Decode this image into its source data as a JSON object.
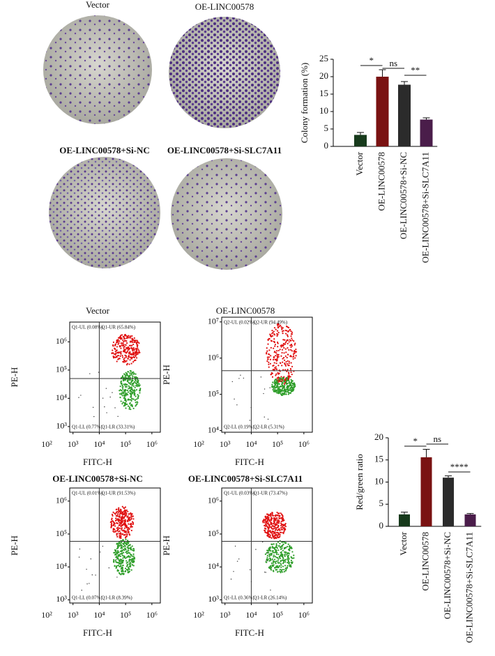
{
  "colony_images": {
    "labels": [
      "Vector",
      "OE-LINC00578",
      "OE-LINC00578+Si-NC",
      "OE-LINC00578+Si-SLC7A11"
    ]
  },
  "flow_plots": [
    {
      "title": "Vector",
      "xlabel": "FITC-H",
      "ylabel": "PE-H",
      "log": true,
      "xlim": [
        750,
        2100000
      ],
      "ylim": [
        630,
        5000000
      ],
      "gate_x": 10000,
      "gate_y": 50000,
      "xticks": [
        {
          "value": 100,
          "label": "10²"
        },
        {
          "value": 1000,
          "label": "10³"
        },
        {
          "value": 10000,
          "label": "10⁴"
        },
        {
          "value": 100000,
          "label": "10⁵"
        },
        {
          "value": 1000000,
          "label": "10⁶"
        }
      ],
      "yticks": [
        {
          "value": 1000,
          "label": "10³"
        },
        {
          "value": 10000,
          "label": "10⁴"
        },
        {
          "value": 100000,
          "label": "10⁵"
        },
        {
          "value": 1000000,
          "label": "10⁶"
        }
      ],
      "quadrants": {
        "ul": "Q1-UL (0.08%)",
        "ur": "Q1-UR (65.84%)",
        "ll": "Q1-LL (0.77%)",
        "lr": "Q1-LR (33.31%)"
      }
    },
    {
      "title": "OE-LINC00578",
      "xlabel": "FITC-H",
      "ylabel": "PE-H",
      "log": true,
      "xlim": [
        750,
        2100000
      ],
      "ylim": [
        9000,
        13500000
      ],
      "gate_x": 10000,
      "gate_y": 450000,
      "xticks": [
        {
          "value": 100,
          "label": "10²"
        },
        {
          "value": 1000,
          "label": "10³"
        },
        {
          "value": 10000,
          "label": "10⁴"
        },
        {
          "value": 100000,
          "label": "10⁵"
        },
        {
          "value": 1000000,
          "label": "10⁶"
        }
      ],
      "yticks": [
        {
          "value": 10000,
          "label": "10⁴"
        },
        {
          "value": 100000,
          "label": "10⁵"
        },
        {
          "value": 1000000,
          "label": "10⁶"
        },
        {
          "value": 10000000,
          "label": "10⁷"
        }
      ],
      "quadrants": {
        "ul": "Q2-UL (0.02%)",
        "ur": "Q2-UR (94.49%)",
        "ll": "Q2-LL (0.19%)",
        "lr": "Q2-LR (5.31%)"
      }
    },
    {
      "title": "OE-LINC00578+Si-NC",
      "xlabel": "FITC-H",
      "ylabel": "PE-H",
      "log": true,
      "xlim": [
        750,
        2100000
      ],
      "ylim": [
        800,
        2500000
      ],
      "gate_x": 10000,
      "gate_y": 60000,
      "xticks": [
        {
          "value": 100,
          "label": "10²"
        },
        {
          "value": 1000,
          "label": "10³"
        },
        {
          "value": 10000,
          "label": "10⁴"
        },
        {
          "value": 100000,
          "label": "10⁵"
        },
        {
          "value": 1000000,
          "label": "10⁶"
        }
      ],
      "yticks": [
        {
          "value": 1000,
          "label": "10³"
        },
        {
          "value": 10000,
          "label": "10⁴"
        },
        {
          "value": 100000,
          "label": "10⁵"
        },
        {
          "value": 1000000,
          "label": "10⁶"
        }
      ],
      "quadrants": {
        "ul": "Q1-UL (0.01%)",
        "ur": "Q1-UR (91.53%)",
        "ll": "Q1-LL (0.07%)",
        "lr": "Q1-LR (8.39%)"
      }
    },
    {
      "title": "OE-LINC00578+Si-SLC7A11",
      "xlabel": "FITC-H",
      "ylabel": "PE-H",
      "log": true,
      "xlim": [
        750,
        2100000
      ],
      "ylim": [
        800,
        2500000
      ],
      "gate_x": 10000,
      "gate_y": 60000,
      "xticks": [
        {
          "value": 100,
          "label": "10²"
        },
        {
          "value": 1000,
          "label": "10³"
        },
        {
          "value": 10000,
          "label": "10⁴"
        },
        {
          "value": 100000,
          "label": "10⁵"
        },
        {
          "value": 1000000,
          "label": "10⁶"
        }
      ],
      "yticks": [
        {
          "value": 1000,
          "label": "10³"
        },
        {
          "value": 10000,
          "label": "10⁴"
        },
        {
          "value": 100000,
          "label": "10⁵"
        },
        {
          "value": 1000000,
          "label": "10⁶"
        }
      ],
      "quadrants": {
        "ul": "Q1-UL (0.03%)",
        "ur": "Q1-UR (73.47%)",
        "ll": "Q1-LL (0.36%)",
        "lr": "Q1-LR (26.14%)"
      }
    }
  ],
  "chart_data": [
    {
      "type": "bar",
      "ylabel": "Colony formation (%)",
      "categories": [
        "Vector",
        "OE-LINC00578",
        "OE-LINC00578+Si-NC",
        "OE-LINC00578+Si-SLC7A11"
      ],
      "values": [
        3.3,
        20,
        17.7,
        7.7
      ],
      "errors": [
        0.7,
        2,
        0.9,
        0.5
      ],
      "colors": [
        "#173a1c",
        "#7a1212",
        "#2b2b2b",
        "#4a1d4a"
      ],
      "ylim": [
        0,
        25
      ],
      "yticks": [
        0,
        5,
        10,
        15,
        20,
        25
      ],
      "annotations": [
        "*",
        "ns",
        "**"
      ]
    },
    {
      "type": "bar",
      "ylabel": "Red/green ratio",
      "categories": [
        "Vector",
        "OE-LINC00578",
        "OE-LINC00578+Si-NC",
        "OE-LINC00578+Si-SLC7A11"
      ],
      "values": [
        2.7,
        15.6,
        11,
        2.7
      ],
      "errors": [
        0.5,
        1.8,
        0.4,
        0.2
      ],
      "colors": [
        "#173a1c",
        "#7a1212",
        "#2b2b2b",
        "#4a1d4a"
      ],
      "ylim": [
        0,
        20
      ],
      "yticks": [
        0,
        5,
        10,
        15,
        20
      ],
      "annotations": [
        "*",
        "ns",
        "****"
      ]
    }
  ]
}
